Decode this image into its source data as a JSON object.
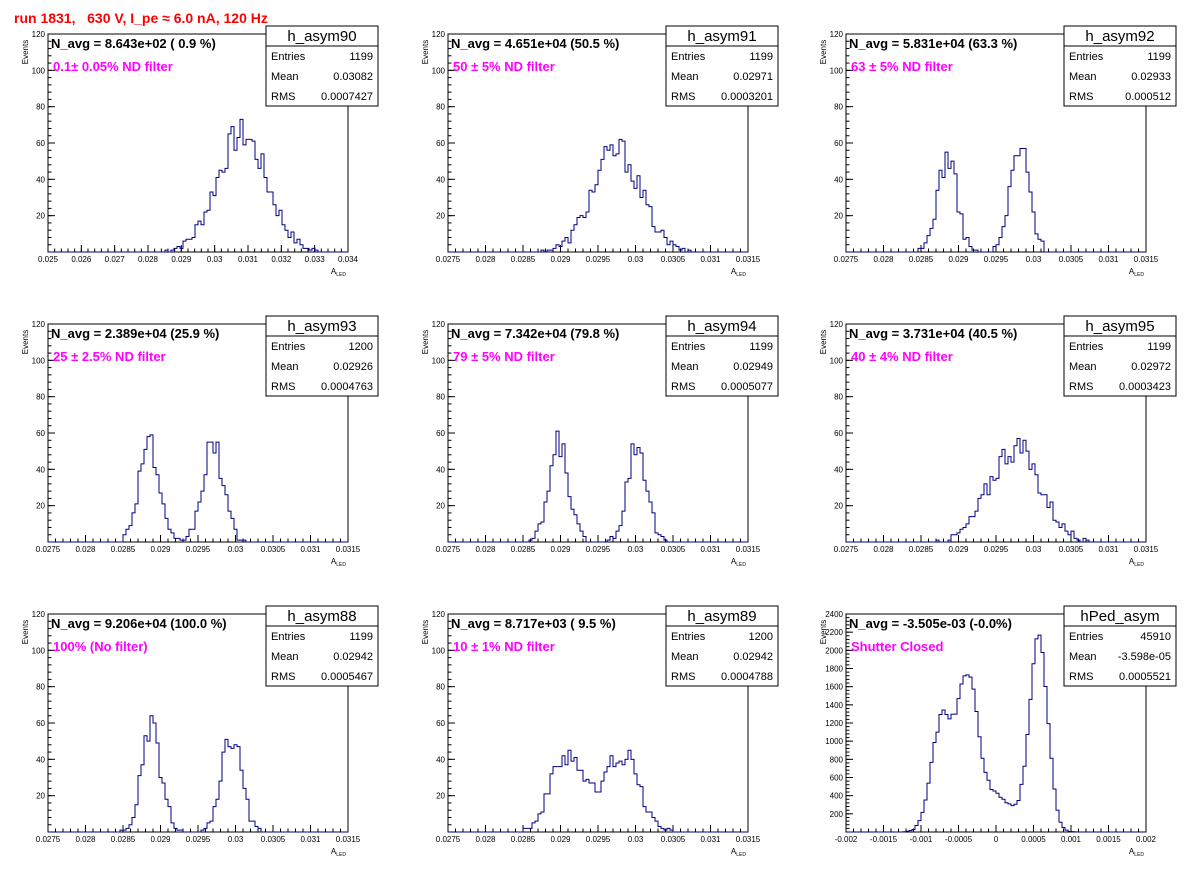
{
  "page_title": "run 1831,   630 V, I_pe ≈ 6.0 nA, 120 Hz",
  "colors": {
    "histogram": "#000080",
    "filter_label": "#ff00ff",
    "title": "#ff0000",
    "axis": "#000000"
  },
  "chart_data": [
    {
      "type": "histogram",
      "name": "h_asym90",
      "navg": "N_avg = 8.643e+02 ( 0.9 %)",
      "filter": "0.1± 0.05% ND filter",
      "stats": {
        "entries": "1199",
        "mean": "0.03082",
        "rms": "0.0007427"
      },
      "xlim": [
        0.025,
        0.034
      ],
      "ylim": [
        0,
        120
      ],
      "xticks": [
        "0.025",
        "0.026",
        "0.027",
        "0.028",
        "0.029",
        "0.03",
        "0.031",
        "0.032",
        "0.033",
        "0.034"
      ],
      "yticks": [
        "20",
        "40",
        "60",
        "80",
        "100",
        "120"
      ],
      "xlabel": "A",
      "xlabel_sub": "LED",
      "ylabel": "Events",
      "modes": [
        {
          "c": 0.03082,
          "s": 0.00075,
          "a": 65
        }
      ]
    },
    {
      "type": "histogram",
      "name": "h_asym91",
      "navg": "N_avg = 4.651e+04 (50.5 %)",
      "filter": " 50 ± 5% ND filter",
      "stats": {
        "entries": "1199",
        "mean": "0.02971",
        "rms": "0.0003201"
      },
      "xlim": [
        0.0275,
        0.0315
      ],
      "ylim": [
        0,
        120
      ],
      "xticks": [
        "0.0275",
        "0.028",
        "0.0285",
        "0.029",
        "0.0295",
        "0.03",
        "0.0305",
        "0.031",
        "0.0315"
      ],
      "yticks": [
        "20",
        "40",
        "60",
        "80",
        "100",
        "120"
      ],
      "xlabel": "A",
      "xlabel_sub": "LED",
      "ylabel": "Events",
      "modes": [
        {
          "c": 0.02975,
          "s": 0.00032,
          "a": 56
        }
      ]
    },
    {
      "type": "histogram",
      "name": "h_asym92",
      "navg": "N_avg = 5.831e+04 (63.3 %)",
      "filter": " 63 ± 5% ND filter",
      "stats": {
        "entries": "1199",
        "mean": "0.02933",
        "rms": "0.000512"
      },
      "xlim": [
        0.0275,
        0.0315
      ],
      "ylim": [
        0,
        120
      ],
      "xticks": [
        "0.0275",
        "0.028",
        "0.0285",
        "0.029",
        "0.0295",
        "0.03",
        "0.0305",
        "0.031",
        "0.0315"
      ],
      "yticks": [
        "20",
        "40",
        "60",
        "80",
        "100",
        "120"
      ],
      "xlabel": "A",
      "xlabel_sub": "LED",
      "ylabel": "Events",
      "modes": [
        {
          "c": 0.02885,
          "s": 0.00013,
          "a": 52
        },
        {
          "c": 0.02982,
          "s": 0.00013,
          "a": 57
        }
      ]
    },
    {
      "type": "histogram",
      "name": "h_asym93",
      "navg": "N_avg = 2.389e+04 (25.9 %)",
      "filter": " 25 ± 2.5% ND filter",
      "stats": {
        "entries": "1200",
        "mean": "0.02926",
        "rms": "0.0004763"
      },
      "xlim": [
        0.0275,
        0.0315
      ],
      "ylim": [
        0,
        120
      ],
      "xticks": [
        "0.0275",
        "0.028",
        "0.0285",
        "0.029",
        "0.0295",
        "0.03",
        "0.0305",
        "0.031",
        "0.0315"
      ],
      "yticks": [
        "20",
        "40",
        "60",
        "80",
        "100",
        "120"
      ],
      "xlabel": "A",
      "xlabel_sub": "LED",
      "ylabel": "Events",
      "modes": [
        {
          "c": 0.02884,
          "s": 0.00013,
          "a": 56
        },
        {
          "c": 0.0297,
          "s": 0.00014,
          "a": 53
        }
      ]
    },
    {
      "type": "histogram",
      "name": "h_asym94",
      "navg": "N_avg = 7.342e+04 (79.8 %)",
      "filter": " 79 ± 5% ND filter",
      "stats": {
        "entries": "1199",
        "mean": "0.02949",
        "rms": "0.0005077"
      },
      "xlim": [
        0.0275,
        0.0315
      ],
      "ylim": [
        0,
        120
      ],
      "xticks": [
        "0.0275",
        "0.028",
        "0.0285",
        "0.029",
        "0.0295",
        "0.03",
        "0.0305",
        "0.031",
        "0.0315"
      ],
      "yticks": [
        "20",
        "40",
        "60",
        "80",
        "100",
        "120"
      ],
      "xlabel": "A",
      "xlabel_sub": "LED",
      "ylabel": "Events",
      "modes": [
        {
          "c": 0.02898,
          "s": 0.00013,
          "a": 54
        },
        {
          "c": 0.03002,
          "s": 0.00013,
          "a": 55
        }
      ]
    },
    {
      "type": "histogram",
      "name": "h_asym95",
      "navg": "N_avg = 3.731e+04 (40.5 %)",
      "filter": " 40 ± 4% ND filter",
      "stats": {
        "entries": "1199",
        "mean": "0.02972",
        "rms": "0.0003423"
      },
      "xlim": [
        0.0275,
        0.0315
      ],
      "ylim": [
        0,
        120
      ],
      "xticks": [
        "0.0275",
        "0.028",
        "0.0285",
        "0.029",
        "0.0295",
        "0.03",
        "0.0305",
        "0.031",
        "0.0315"
      ],
      "yticks": [
        "20",
        "40",
        "60",
        "80",
        "100",
        "120"
      ],
      "xlabel": "A",
      "xlabel_sub": "LED",
      "ylabel": "Events",
      "modes": [
        {
          "c": 0.02975,
          "s": 0.00034,
          "a": 52
        }
      ]
    },
    {
      "type": "histogram",
      "name": "h_asym88",
      "navg": "N_avg = 9.206e+04 (100.0 %)",
      "filter": " 100% (No filter)",
      "stats": {
        "entries": "1199",
        "mean": "0.02942",
        "rms": "0.0005467"
      },
      "xlim": [
        0.0275,
        0.0315
      ],
      "ylim": [
        0,
        120
      ],
      "xticks": [
        "0.0275",
        "0.028",
        "0.0285",
        "0.029",
        "0.0295",
        "0.03",
        "0.0305",
        "0.031",
        "0.0315"
      ],
      "yticks": [
        "20",
        "40",
        "60",
        "80",
        "100",
        "120"
      ],
      "xlabel": "A",
      "xlabel_sub": "LED",
      "ylabel": "Events",
      "modes": [
        {
          "c": 0.02888,
          "s": 0.00013,
          "a": 56
        },
        {
          "c": 0.02995,
          "s": 0.00013,
          "a": 53
        }
      ]
    },
    {
      "type": "histogram",
      "name": "h_asym89",
      "navg": "N_avg = 8.717e+03 ( 9.5 %)",
      "filter": " 10 ± 1% ND filter",
      "stats": {
        "entries": "1200",
        "mean": "0.02942",
        "rms": "0.0004788"
      },
      "xlim": [
        0.0275,
        0.0315
      ],
      "ylim": [
        0,
        120
      ],
      "xticks": [
        "0.0275",
        "0.028",
        "0.0285",
        "0.029",
        "0.0295",
        "0.03",
        "0.0305",
        "0.031",
        "0.0315"
      ],
      "yticks": [
        "20",
        "40",
        "60",
        "80",
        "100",
        "120"
      ],
      "xlabel": "A",
      "xlabel_sub": "LED",
      "ylabel": "Events",
      "modes": [
        {
          "c": 0.0291,
          "s": 0.00022,
          "a": 44
        },
        {
          "c": 0.02982,
          "s": 0.00022,
          "a": 44
        }
      ]
    },
    {
      "type": "histogram",
      "name": "hPed_asym",
      "navg": "N_avg = -3.505e-03 (-0.0%)",
      "filter": "Shutter Closed",
      "stats": {
        "entries": "45910",
        "mean": "-3.598e-05",
        "rms": "0.0005521"
      },
      "xlim": [
        -0.002,
        0.002
      ],
      "ylim": [
        0,
        2400
      ],
      "xticks": [
        "-0.002",
        "-0.0015",
        "-0.001",
        "-0.0005",
        "0",
        "0.0005",
        "0.001",
        "0.0015",
        "0.002"
      ],
      "yticks": [
        "200",
        "400",
        "600",
        "800",
        "1000",
        "1200",
        "1400",
        "1600",
        "1800",
        "2000",
        "2200",
        "2400"
      ],
      "xlabel": "A",
      "xlabel_sub": "LED",
      "ylabel": "Events",
      "modes": [
        {
          "c": -0.00072,
          "s": 0.00014,
          "a": 1200
        },
        {
          "c": -0.00038,
          "s": 0.00013,
          "a": 1450
        },
        {
          "c": -8e-05,
          "s": 0.0003,
          "a": 420
        },
        {
          "c": 0.00057,
          "s": 0.00012,
          "a": 2150
        }
      ]
    }
  ]
}
